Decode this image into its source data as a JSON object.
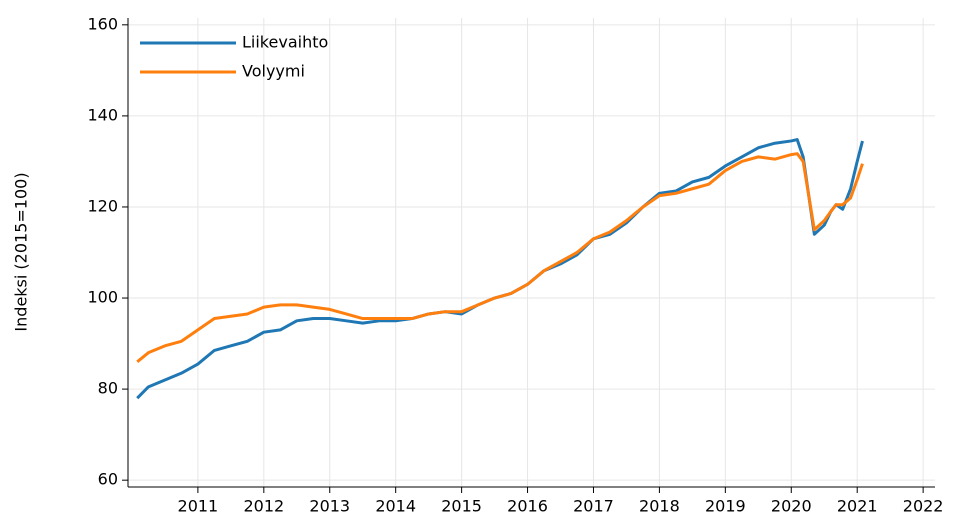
{
  "chart_data": {
    "type": "line",
    "y_label": "Indeksi (2015=100)",
    "x": [
      2010.08,
      2010.25,
      2010.5,
      2010.75,
      2011.0,
      2011.25,
      2011.5,
      2011.75,
      2012.0,
      2012.25,
      2012.5,
      2012.75,
      2013.0,
      2013.25,
      2013.5,
      2013.75,
      2014.0,
      2014.25,
      2014.5,
      2014.75,
      2015.0,
      2015.25,
      2015.5,
      2015.75,
      2016.0,
      2016.25,
      2016.5,
      2016.75,
      2017.0,
      2017.25,
      2017.5,
      2017.75,
      2018.0,
      2018.25,
      2018.5,
      2018.75,
      2019.0,
      2019.25,
      2019.5,
      2019.75,
      2020.0,
      2020.09,
      2020.18,
      2020.35,
      2020.5,
      2020.6,
      2020.68,
      2020.78,
      2020.9,
      2021.0,
      2021.08
    ],
    "series": [
      {
        "name": "Liikevaihto",
        "color": "#1f77b4",
        "values": [
          78,
          80.5,
          82,
          83.5,
          85.5,
          88.5,
          89.5,
          90.5,
          92.5,
          93,
          95,
          95.5,
          95.5,
          95,
          94.5,
          95,
          95,
          95.5,
          96.5,
          97,
          96.5,
          98.5,
          100,
          101,
          103,
          106,
          107.5,
          109.5,
          113,
          114,
          116.5,
          120,
          123,
          123.5,
          125.5,
          126.5,
          129,
          131,
          133,
          134,
          134.5,
          134.8,
          131,
          114,
          116,
          119,
          120.5,
          119.5,
          124,
          130,
          134.5
        ]
      },
      {
        "name": "Volyymi",
        "color": "#ff7f0e",
        "values": [
          86,
          88,
          89.5,
          90.5,
          93,
          95.5,
          96,
          96.5,
          98,
          98.5,
          98.5,
          98,
          97.5,
          96.5,
          95.5,
          95.5,
          95.5,
          95.5,
          96.5,
          97,
          97,
          98.5,
          100,
          101,
          103,
          106,
          108,
          110,
          113,
          114.5,
          117,
          120,
          122.5,
          123,
          124,
          125,
          128,
          130,
          131,
          130.5,
          131.5,
          131.7,
          130,
          115,
          117,
          119,
          120.5,
          120.5,
          122,
          126,
          129.5
        ]
      }
    ],
    "xlim": [
      2009.94,
      2022.18
    ],
    "xticks": [
      2011,
      2012,
      2013,
      2014,
      2015,
      2016,
      2017,
      2018,
      2019,
      2020,
      2021,
      2022
    ],
    "ylim": [
      58.5,
      161.5
    ],
    "yticks": [
      60,
      80,
      100,
      120,
      140,
      160
    ],
    "grid": true,
    "legend": "top-left"
  }
}
